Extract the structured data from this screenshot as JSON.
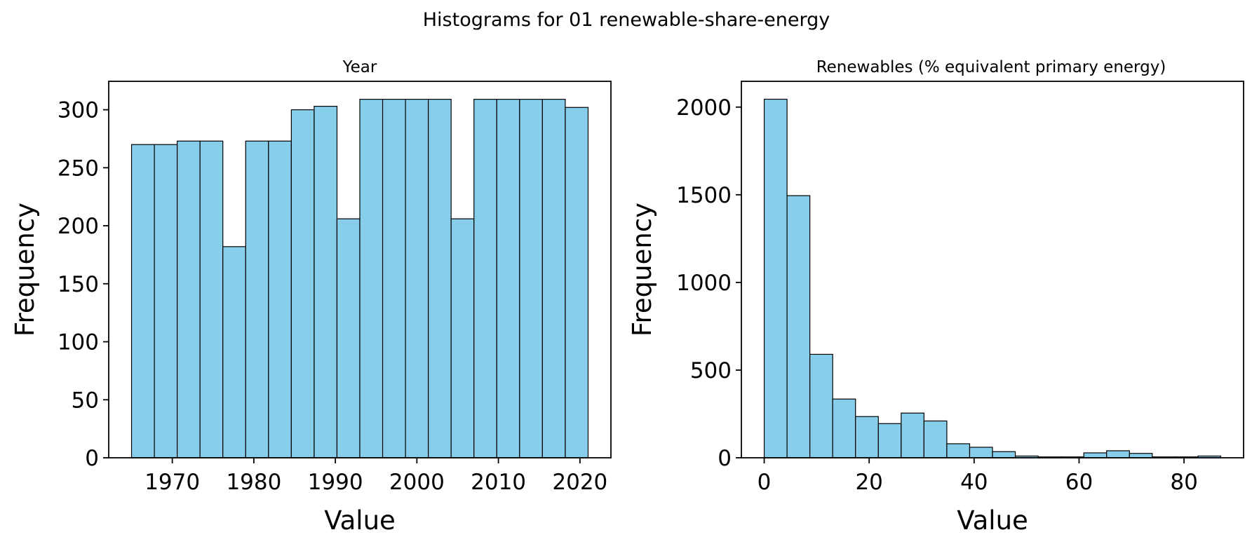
{
  "figure": {
    "title": "Histograms for 01 renewable-share-energy"
  },
  "colors": {
    "bar_fill": "#87ceeb",
    "bar_edge": "#000000"
  },
  "chart_data": [
    {
      "type": "bar",
      "title": "Year",
      "xlabel": "Value",
      "ylabel": "Frequency",
      "grid": false,
      "bin_edges": [
        1965,
        1967.8,
        1970.6,
        1973.4,
        1976.2,
        1979,
        1981.8,
        1984.6,
        1987.4,
        1990.2,
        1993,
        1995.8,
        1998.6,
        2001.4,
        2004.2,
        2007,
        2009.8,
        2012.6,
        2015.4,
        2018.2,
        2021
      ],
      "values": [
        270,
        270,
        273,
        273,
        182,
        273,
        273,
        300,
        303,
        206,
        309,
        309,
        309,
        309,
        206,
        309,
        309,
        309,
        309,
        302
      ],
      "xlim": [
        1962.2,
        2023.8
      ],
      "ylim": [
        0,
        324.5
      ],
      "xticks": [
        1970,
        1980,
        1990,
        2000,
        2010,
        2020
      ],
      "yticks": [
        0,
        50,
        100,
        150,
        200,
        250,
        300
      ]
    },
    {
      "type": "bar",
      "title": "Renewables (% equivalent primary energy)",
      "xlabel": "Value",
      "ylabel": "Frequency",
      "grid": false,
      "bin_edges": [
        0,
        4.35,
        8.7,
        13.05,
        17.4,
        21.75,
        26.1,
        30.45,
        34.8,
        39.15,
        43.5,
        47.85,
        52.2,
        56.55,
        60.9,
        65.25,
        69.6,
        73.95,
        78.3,
        82.65,
        87
      ],
      "values": [
        2045,
        1495,
        590,
        335,
        235,
        195,
        255,
        210,
        80,
        60,
        35,
        10,
        5,
        5,
        28,
        40,
        25,
        5,
        5,
        10
      ],
      "xlim": [
        -4.35,
        91.35
      ],
      "ylim": [
        0,
        2147
      ],
      "xticks": [
        0,
        20,
        40,
        60,
        80
      ],
      "yticks": [
        0,
        500,
        1000,
        1500,
        2000
      ]
    }
  ]
}
